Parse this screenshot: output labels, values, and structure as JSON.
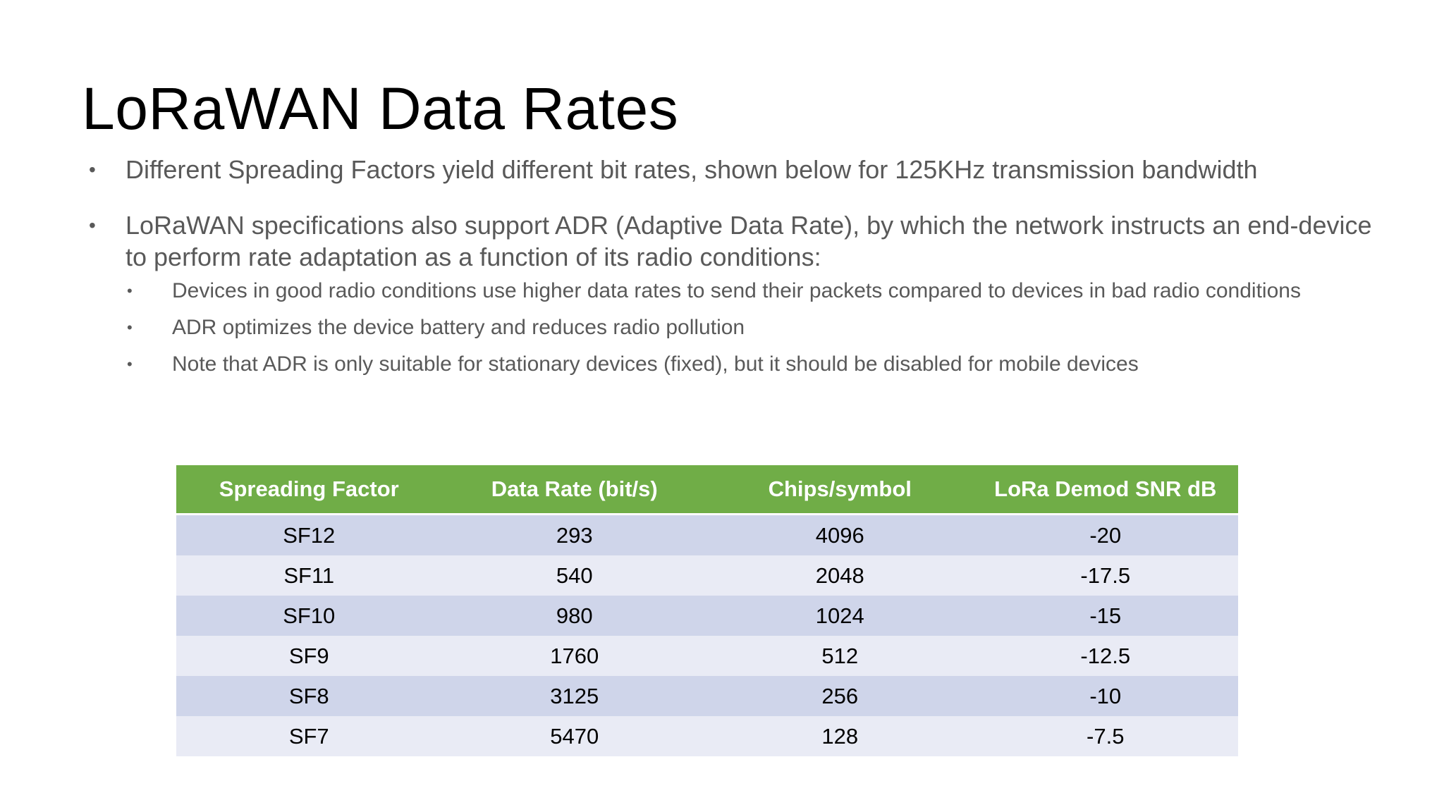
{
  "slide": {
    "title": "LoRaWAN Data Rates",
    "bullets": [
      {
        "text": "Different Spreading Factors yield different bit rates, shown below for 125KHz transmission bandwidth"
      },
      {
        "text": "LoRaWAN specifications also support ADR (Adaptive Data Rate), by which the network instructs an end-device to perform rate adaptation as a function of its radio conditions:",
        "sub": [
          "Devices in good radio conditions use higher data rates to send their packets compared to devices in bad radio conditions",
          "ADR optimizes the device battery and reduces radio pollution",
          "Note that ADR is only suitable for stationary devices (fixed), but it should be disabled for mobile devices"
        ]
      }
    ],
    "bullet_glyph": "•"
  },
  "table": {
    "headers": [
      "Spreading Factor",
      "Data Rate (bit/s)",
      "Chips/symbol",
      "LoRa Demod SNR  dB"
    ],
    "rows": [
      [
        "SF12",
        "293",
        "4096",
        "-20"
      ],
      [
        "SF11",
        "540",
        "2048",
        "-17.5"
      ],
      [
        "SF10",
        "980",
        "1024",
        "-15"
      ],
      [
        "SF9",
        "1760",
        "512",
        "-12.5"
      ],
      [
        "SF8",
        "3125",
        "256",
        "-10"
      ],
      [
        "SF7",
        "5470",
        "128",
        "-7.5"
      ]
    ]
  },
  "colors": {
    "header_bg": "#70ad47",
    "row_band_dark": "#cfd5ea",
    "row_band_light": "#e9ebf5",
    "body_text": "#595959"
  }
}
